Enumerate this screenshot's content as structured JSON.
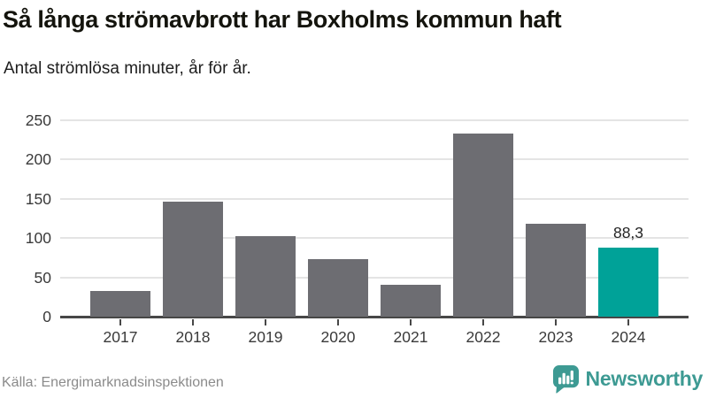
{
  "header": {
    "title": "Så långa strömavbrott har Boxholms kommun haft",
    "subtitle": "Antal strömlösa minuter, år för år."
  },
  "chart_data": {
    "type": "bar",
    "title": "Så långa strömavbrott har Boxholms kommun haft",
    "subtitle": "Antal strömlösa minuter, år för år.",
    "categories": [
      "2017",
      "2018",
      "2019",
      "2020",
      "2021",
      "2022",
      "2023",
      "2024"
    ],
    "values": [
      33,
      146,
      102,
      73,
      41,
      233,
      118,
      88.3
    ],
    "value_labels": [
      null,
      null,
      null,
      null,
      null,
      null,
      null,
      "88,3"
    ],
    "highlight_index": 7,
    "xlabel": "",
    "ylabel": "",
    "ylim": [
      0,
      250
    ],
    "yticks": [
      0,
      50,
      100,
      150,
      200,
      250
    ],
    "grid": true,
    "legend": false,
    "bar_color": "#6d6d72",
    "highlight_color": "#00a298"
  },
  "footer": {
    "source": "Källa: Energimarknadsinspektionen",
    "brand": "Newsworthy"
  },
  "colors": {
    "grid": "#e4e4e4",
    "axis": "#474747",
    "brand_teal": "#3d9a93"
  }
}
